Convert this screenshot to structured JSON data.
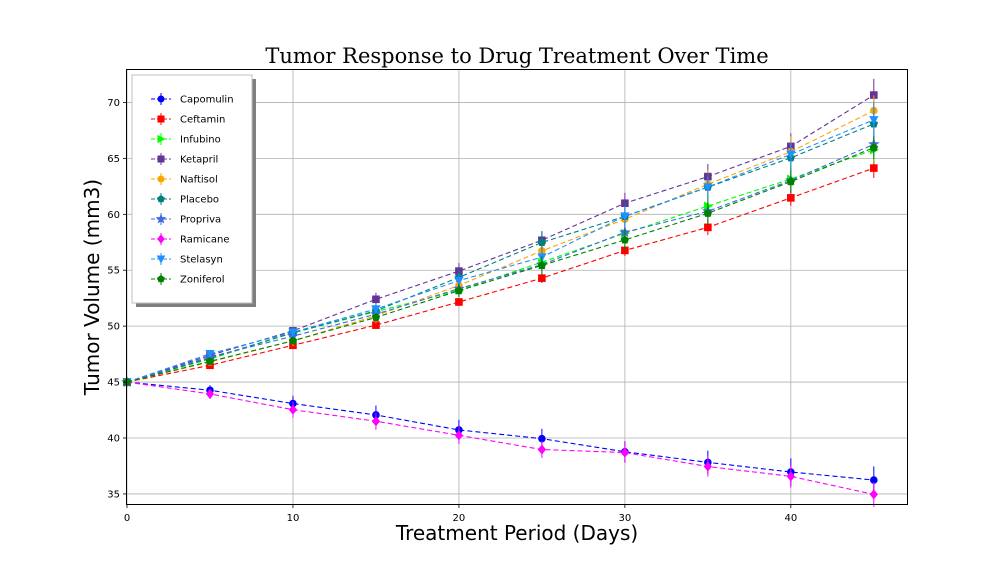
{
  "chart_data": {
    "type": "line",
    "title": "Tumor Response to Drug Treatment Over Time",
    "xlabel": "Treatment Period (Days)",
    "ylabel": "Tumor Volume (mm3)",
    "xlim": [
      0,
      47
    ],
    "ylim": [
      34.1,
      72.9
    ],
    "x_ticks": [
      0,
      10,
      20,
      30,
      40
    ],
    "y_ticks": [
      35,
      40,
      45,
      50,
      55,
      60,
      65,
      70
    ],
    "grid": true,
    "legend_position": "top-left",
    "x": [
      0,
      5,
      10,
      15,
      20,
      25,
      30,
      35,
      40,
      45
    ],
    "series": [
      {
        "name": "Capomulin",
        "color": "#0000ff",
        "marker": "circle",
        "values": [
          45.0,
          44.27,
          43.08,
          42.06,
          40.72,
          39.94,
          38.77,
          37.82,
          36.96,
          36.24
        ],
        "errors": [
          0,
          0.45,
          0.7,
          0.84,
          0.91,
          0.88,
          0.93,
          1.05,
          1.22,
          1.22
        ]
      },
      {
        "name": "Ceftamin",
        "color": "#ff0000",
        "marker": "square",
        "values": [
          45.0,
          46.5,
          48.29,
          50.09,
          52.16,
          54.29,
          56.77,
          58.83,
          61.47,
          64.13
        ],
        "errors": [
          0,
          0.16,
          0.24,
          0.33,
          0.36,
          0.44,
          0.49,
          0.69,
          0.71,
          0.88
        ]
      },
      {
        "name": "Infubino",
        "color": "#00ff00",
        "marker": "triangle-right",
        "values": [
          45.0,
          47.06,
          49.4,
          51.3,
          53.2,
          55.72,
          58.3,
          60.74,
          63.16,
          65.76
        ],
        "errors": [
          0,
          0.24,
          0.28,
          0.36,
          0.48,
          0.55,
          0.63,
          0.98,
          1.06,
          1.14
        ]
      },
      {
        "name": "Ketapril",
        "color": "#663399",
        "marker": "square",
        "values": [
          45.0,
          47.39,
          49.58,
          52.4,
          54.92,
          57.68,
          60.99,
          63.37,
          66.07,
          70.66
        ],
        "errors": [
          0,
          0.26,
          0.36,
          0.58,
          0.73,
          0.76,
          0.93,
          1.13,
          1.16,
          1.45
        ]
      },
      {
        "name": "Naftisol",
        "color": "#ffa500",
        "marker": "circle",
        "values": [
          45.0,
          46.8,
          48.69,
          50.93,
          53.64,
          56.73,
          59.56,
          62.69,
          65.6,
          69.27
        ],
        "errors": [
          0,
          0.2,
          0.49,
          0.69,
          0.82,
          0.84,
          1.03,
          1.28,
          1.37,
          1.35
        ]
      },
      {
        "name": "Placebo",
        "color": "#008080",
        "marker": "pentagon",
        "values": [
          45.0,
          47.13,
          49.42,
          51.36,
          54.36,
          57.48,
          59.81,
          62.42,
          65.05,
          68.08
        ],
        "errors": [
          0,
          0.22,
          0.4,
          0.61,
          0.84,
          1.03,
          1.22,
          1.29,
          1.14,
          1.39
        ]
      },
      {
        "name": "Propriva",
        "color": "#4169e1",
        "marker": "star",
        "values": [
          45.0,
          47.25,
          49.1,
          51.07,
          53.35,
          55.5,
          58.39,
          60.27,
          63.03,
          66.26
        ],
        "errors": [
          0,
          0.23,
          0.38,
          0.47,
          0.56,
          0.72,
          0.87,
          0.88,
          1.11,
          1.0
        ]
      },
      {
        "name": "Ramicane",
        "color": "#ff00ff",
        "marker": "diamond",
        "values": [
          45.0,
          43.94,
          42.53,
          41.5,
          40.24,
          38.97,
          38.7,
          37.45,
          36.57,
          34.96
        ],
        "errors": [
          0,
          0.45,
          0.72,
          0.77,
          0.79,
          0.75,
          0.93,
          0.9,
          1.0,
          1.11
        ]
      },
      {
        "name": "Stelasyn",
        "color": "#1e90ff",
        "marker": "triangle-down",
        "values": [
          45.0,
          47.53,
          49.46,
          51.53,
          54.07,
          56.17,
          59.83,
          62.44,
          65.36,
          68.44
        ],
        "errors": [
          0,
          0.24,
          0.43,
          0.49,
          0.62,
          0.74,
          0.9,
          0.94,
          1.08,
          1.56
        ]
      },
      {
        "name": "Zoniferol",
        "color": "#008000",
        "marker": "pentagon",
        "values": [
          45.0,
          46.85,
          48.69,
          50.78,
          53.17,
          55.43,
          57.71,
          60.09,
          62.92,
          65.96
        ],
        "errors": [
          0,
          0.19,
          0.26,
          0.36,
          0.6,
          0.81,
          0.98,
          1.0,
          1.0,
          1.0
        ]
      }
    ]
  }
}
